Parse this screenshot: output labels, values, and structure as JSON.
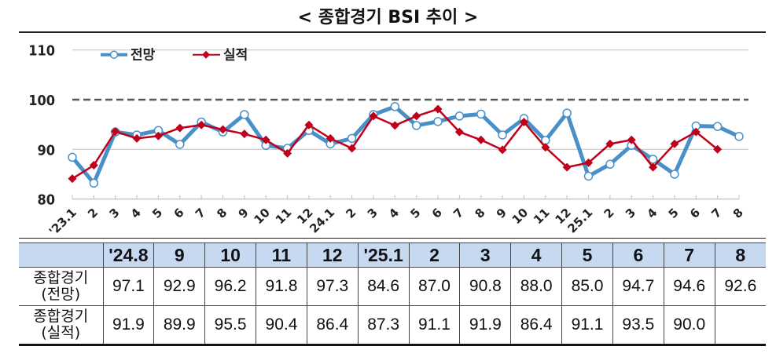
{
  "title": "< 종합경기 BSI 추이 >",
  "legend": {
    "outlook": "전망",
    "actual": "실적"
  },
  "colors": {
    "outlook": "#4a90c8",
    "actual": "#c0001a",
    "reference_line": "#555555",
    "grid": "#c8c8c8",
    "table_header_bg": "#c6d9f1"
  },
  "chart_data": {
    "type": "line",
    "title": "< 종합경기 BSI 추이 >",
    "xlabel": "",
    "ylabel": "",
    "ylim": [
      80,
      110
    ],
    "yticks": [
      80,
      90,
      100,
      110
    ],
    "reference_line": 100,
    "grid": "horizontal at 90 and 110",
    "legend_position": "top-left inside",
    "x": [
      "'23.1",
      "2",
      "3",
      "4",
      "5",
      "6",
      "7",
      "8",
      "9",
      "10",
      "11",
      "12",
      "24.1",
      "2",
      "3",
      "4",
      "5",
      "6",
      "7",
      "8",
      "9",
      "10",
      "11",
      "12",
      "25.1",
      "2",
      "3",
      "4",
      "5",
      "6",
      "7",
      "8"
    ],
    "series": [
      {
        "name": "전망",
        "marker": "open-circle",
        "values": [
          88.4,
          83.2,
          93.5,
          92.9,
          93.8,
          91.0,
          95.5,
          93.5,
          97.0,
          90.8,
          90.2,
          93.8,
          91.1,
          92.2,
          97.0,
          98.6,
          94.8,
          95.6,
          96.7,
          97.1,
          92.9,
          96.2,
          91.8,
          97.3,
          84.6,
          87.0,
          90.8,
          88.0,
          85.0,
          94.7,
          94.6,
          92.6
        ]
      },
      {
        "name": "실적",
        "marker": "filled-diamond",
        "values": [
          84.1,
          86.8,
          93.6,
          92.2,
          92.7,
          94.3,
          94.9,
          94.0,
          93.1,
          91.9,
          89.2,
          94.9,
          92.2,
          90.2,
          96.7,
          94.8,
          96.7,
          98.1,
          93.5,
          91.9,
          89.9,
          95.5,
          90.4,
          86.4,
          87.3,
          91.1,
          91.9,
          86.4,
          91.1,
          93.5,
          90.0,
          null
        ]
      }
    ]
  },
  "table": {
    "headers": [
      "",
      "'24.8",
      "9",
      "10",
      "11",
      "12",
      "'25.1",
      "2",
      "3",
      "4",
      "5",
      "6",
      "7",
      "8"
    ],
    "rows": [
      {
        "label_line1": "종합경기",
        "label_line2": "(전망)",
        "values": [
          "97.1",
          "92.9",
          "96.2",
          "91.8",
          "97.3",
          "84.6",
          "87.0",
          "90.8",
          "88.0",
          "85.0",
          "94.7",
          "94.6",
          "92.6"
        ]
      },
      {
        "label_line1": "종합경기",
        "label_line2": "(실적)",
        "values": [
          "91.9",
          "89.9",
          "95.5",
          "90.4",
          "86.4",
          "87.3",
          "91.1",
          "91.9",
          "86.4",
          "91.1",
          "93.5",
          "90.0",
          ""
        ]
      }
    ]
  }
}
